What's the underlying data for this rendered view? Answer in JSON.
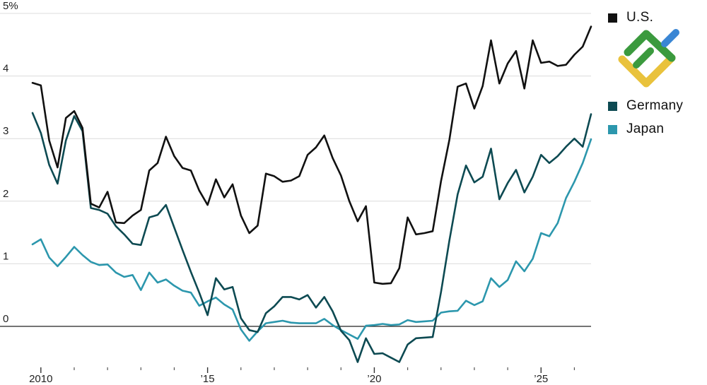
{
  "chart_data": {
    "type": "line",
    "title": "",
    "xlabel": "",
    "ylabel": "",
    "x_start": 2009.75,
    "x_step": 0.25,
    "xlim": [
      2009.6,
      2026.6
    ],
    "ylim": [
      -0.6,
      5.0
    ],
    "y_ticks": [
      {
        "value": 0,
        "label": "0"
      },
      {
        "value": 1,
        "label": "1"
      },
      {
        "value": 2,
        "label": "2"
      },
      {
        "value": 3,
        "label": "3"
      },
      {
        "value": 4,
        "label": "4"
      },
      {
        "value": 5,
        "label": "5%"
      }
    ],
    "x_ticks_minor": [
      2011,
      2012,
      2013,
      2014,
      2016,
      2017,
      2018,
      2019,
      2021,
      2022,
      2023,
      2024,
      2026
    ],
    "x_ticks_major": [
      {
        "value": 2010,
        "label": "2010"
      },
      {
        "value": 2015,
        "label": "’15"
      },
      {
        "value": 2020,
        "label": "’20"
      },
      {
        "value": 2025,
        "label": "’25"
      }
    ],
    "grid": true,
    "legend_position": "right",
    "series": [
      {
        "name": "U.S.",
        "color": "#111111",
        "values": [
          3.89,
          3.85,
          2.97,
          2.54,
          3.33,
          3.44,
          3.17,
          1.96,
          1.9,
          2.15,
          1.66,
          1.65,
          1.77,
          1.86,
          2.49,
          2.61,
          3.03,
          2.72,
          2.53,
          2.49,
          2.17,
          1.94,
          2.35,
          2.06,
          2.27,
          1.77,
          1.49,
          1.61,
          2.44,
          2.4,
          2.31,
          2.33,
          2.4,
          2.74,
          2.86,
          3.05,
          2.69,
          2.41,
          2.0,
          1.68,
          1.92,
          0.7,
          0.68,
          0.69,
          0.93,
          1.74,
          1.47,
          1.49,
          1.52,
          2.32,
          2.98,
          3.83,
          3.88,
          3.48,
          3.84,
          4.57,
          3.88,
          4.2,
          4.4,
          3.8,
          4.57,
          4.21,
          4.23,
          4.16,
          4.18,
          4.34,
          4.47,
          4.79
        ]
      },
      {
        "name": "Germany",
        "color": "#0d4a52",
        "values": [
          3.41,
          3.09,
          2.58,
          2.28,
          2.97,
          3.36,
          3.12,
          1.89,
          1.86,
          1.8,
          1.6,
          1.47,
          1.32,
          1.3,
          1.74,
          1.78,
          1.94,
          1.58,
          1.22,
          0.87,
          0.54,
          0.18,
          0.77,
          0.59,
          0.63,
          0.13,
          -0.06,
          -0.09,
          0.21,
          0.32,
          0.47,
          0.47,
          0.43,
          0.5,
          0.3,
          0.47,
          0.24,
          -0.07,
          -0.22,
          -0.57,
          -0.19,
          -0.44,
          -0.43,
          -0.5,
          -0.57,
          -0.29,
          -0.19,
          -0.18,
          -0.17,
          0.55,
          1.37,
          2.11,
          2.57,
          2.3,
          2.39,
          2.84,
          2.03,
          2.29,
          2.5,
          2.14,
          2.39,
          2.74,
          2.61,
          2.72,
          2.87,
          3.0,
          2.87,
          3.39
        ]
      },
      {
        "name": "Japan",
        "color": "#2c97ad",
        "values": [
          1.31,
          1.39,
          1.1,
          0.96,
          1.11,
          1.27,
          1.14,
          1.03,
          0.98,
          0.99,
          0.86,
          0.79,
          0.82,
          0.58,
          0.86,
          0.7,
          0.75,
          0.65,
          0.57,
          0.54,
          0.33,
          0.4,
          0.46,
          0.35,
          0.27,
          -0.05,
          -0.23,
          -0.08,
          0.05,
          0.07,
          0.09,
          0.06,
          0.05,
          0.05,
          0.05,
          0.12,
          0.02,
          -0.06,
          -0.13,
          -0.2,
          0.01,
          0.02,
          0.04,
          0.02,
          0.03,
          0.1,
          0.07,
          0.08,
          0.09,
          0.22,
          0.24,
          0.25,
          0.41,
          0.34,
          0.4,
          0.77,
          0.63,
          0.74,
          1.04,
          0.88,
          1.08,
          1.49,
          1.44,
          1.65,
          2.05,
          2.31,
          2.61,
          2.99
        ]
      }
    ]
  }
}
